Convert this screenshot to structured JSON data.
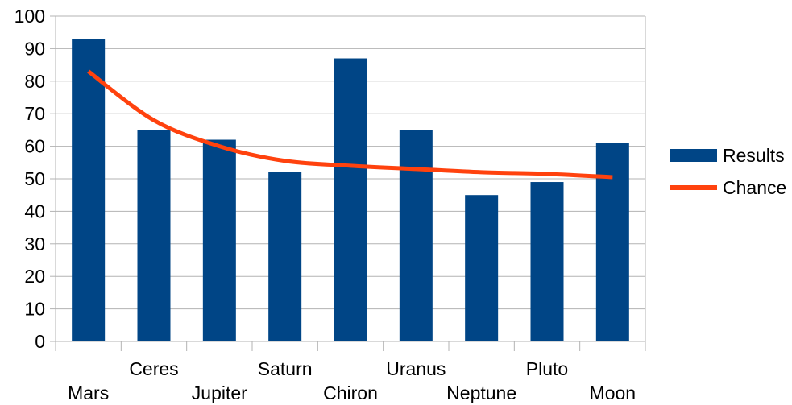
{
  "chart_data": {
    "type": "bar",
    "categories": [
      "Mars",
      "Ceres",
      "Jupiter",
      "Saturn",
      "Chiron",
      "Uranus",
      "Neptune",
      "Pluto",
      "Moon"
    ],
    "series": [
      {
        "name": "Results",
        "type": "bar",
        "color": "#004586",
        "values": [
          93,
          65,
          62,
          52,
          87,
          65,
          45,
          49,
          61
        ]
      },
      {
        "name": "Chance",
        "type": "line",
        "color": "#ff420e",
        "values": [
          83,
          68,
          60,
          55.5,
          54,
          53,
          52,
          51.5,
          50.5
        ]
      }
    ],
    "title": "",
    "xlabel": "",
    "ylabel": "",
    "ylim": [
      0,
      100
    ],
    "yticks": [
      0,
      10,
      20,
      30,
      40,
      50,
      60,
      70,
      80,
      90,
      100
    ],
    "grid": true,
    "legend": "right"
  }
}
